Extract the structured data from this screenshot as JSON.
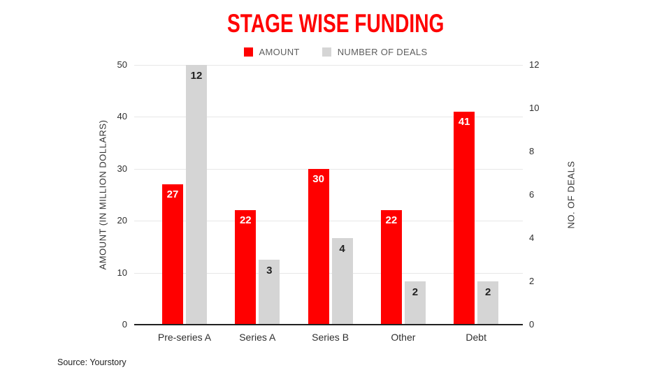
{
  "slide": {
    "title": "STAGE WISE FUNDING",
    "title_color": "#ff0000",
    "source": "Source: Yourstory"
  },
  "chart_data": {
    "type": "bar",
    "title": "STAGE WISE FUNDING",
    "categories": [
      "Pre-series A",
      "Series A",
      "Series B",
      "Other",
      "Debt"
    ],
    "series": [
      {
        "name": "AMOUNT",
        "axis": "left",
        "color": "#ff0000",
        "label_color": "#ffffff",
        "values": [
          27,
          22,
          30,
          22,
          41
        ]
      },
      {
        "name": "NUMBER OF DEALS",
        "axis": "right",
        "color": "#d5d5d5",
        "label_color": "#212121",
        "values": [
          12,
          3,
          4,
          2,
          2
        ]
      }
    ],
    "left_axis": {
      "label": "AMOUNT (IN MILLION DOLLARS)",
      "min": 0,
      "max": 50,
      "ticks": [
        0,
        10,
        20,
        30,
        40,
        50
      ]
    },
    "right_axis": {
      "label": "NO. OF DEALS",
      "min": 0,
      "max": 12,
      "ticks": [
        0,
        2,
        4,
        6,
        8,
        10,
        12
      ]
    },
    "grid": true,
    "gridline_color": "#e7e7e7",
    "axis_line_color": "#212121",
    "legend_position": "top"
  }
}
